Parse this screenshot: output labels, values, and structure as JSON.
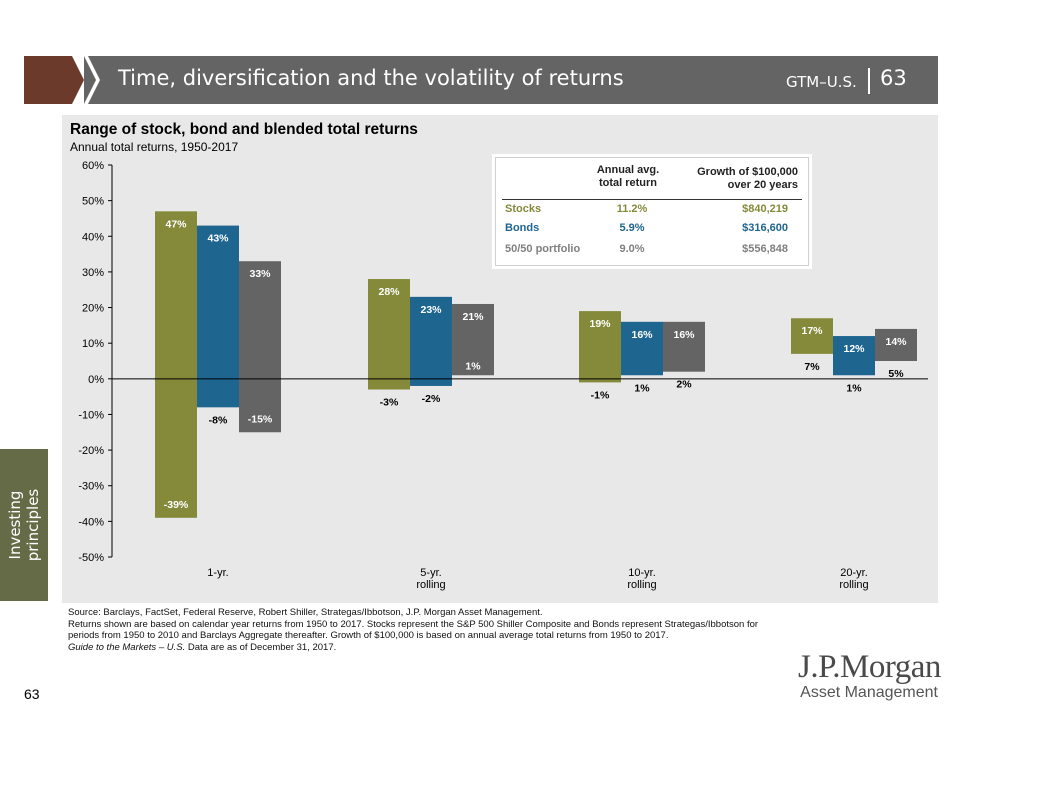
{
  "header": {
    "title": "Time, diversification and the volatility of returns",
    "code": "GTM–U.S.",
    "page": "63",
    "arrow_color": "#6b3a2a",
    "bar_color": "#646464"
  },
  "side_tab": {
    "line1": "Investing",
    "line2": "principles",
    "color": "#646b46"
  },
  "chart_data": {
    "type": "bar",
    "subtype": "floating-range",
    "title": "Range of stock, bond and blended total returns",
    "subtitle": "Annual total returns, 1950-2017",
    "ylim": [
      -50,
      60
    ],
    "yticks": [
      "60%",
      "50%",
      "40%",
      "30%",
      "20%",
      "10%",
      "0%",
      "-10%",
      "-20%",
      "-30%",
      "-40%",
      "-50%"
    ],
    "ytick_values": [
      60,
      50,
      40,
      30,
      20,
      10,
      0,
      -10,
      -20,
      -30,
      -40,
      -50
    ],
    "grid": false,
    "categories": [
      {
        "line1": "1-yr.",
        "line2": ""
      },
      {
        "line1": "5-yr.",
        "line2": "rolling"
      },
      {
        "line1": "10-yr.",
        "line2": "rolling"
      },
      {
        "line1": "20-yr.",
        "line2": "rolling"
      }
    ],
    "series": [
      {
        "name": "Stocks",
        "color": "#848a3a",
        "high": [
          47,
          28,
          19,
          17
        ],
        "low": [
          -39,
          -3,
          -1,
          7
        ],
        "high_labels": [
          "47%",
          "28%",
          "19%",
          "17%"
        ],
        "low_labels": [
          "-39%",
          "-3%",
          "-1%",
          "7%"
        ]
      },
      {
        "name": "Bonds",
        "color": "#1e6590",
        "high": [
          43,
          23,
          16,
          12
        ],
        "low": [
          -8,
          -2,
          1,
          1
        ],
        "high_labels": [
          "43%",
          "23%",
          "16%",
          "12%"
        ],
        "low_labels": [
          "-8%",
          "-2%",
          "1%",
          "1%"
        ]
      },
      {
        "name": "50/50 portfolio",
        "color": "#646464",
        "high": [
          33,
          21,
          16,
          14
        ],
        "low": [
          -15,
          1,
          2,
          5
        ],
        "high_labels": [
          "33%",
          "21%",
          "16%",
          "14%"
        ],
        "low_labels": [
          "-15%",
          "1%",
          "2%",
          "5%"
        ]
      }
    ]
  },
  "legend_table": {
    "col1_line1": "Annual avg.",
    "col1_line2": "total return",
    "col2_line1": "Growth of $100,000",
    "col2_line2": "over 20 years",
    "rows": [
      {
        "name": "Stocks",
        "ret": "11.2%",
        "growth": "$840,219"
      },
      {
        "name": "Bonds",
        "ret": "5.9%",
        "growth": "$316,600"
      },
      {
        "name": "50/50 portfolio",
        "ret": "9.0%",
        "growth": "$556,848"
      }
    ]
  },
  "footnotes": {
    "source": "Source: Barclays, FactSet, Federal Reserve, Robert Shiller, Strategas/Ibbotson, J.P. Morgan Asset Management.",
    "note": "Returns shown are based on calendar year returns from 1950 to 2017. Stocks represent the S&P 500 Shiller Composite and Bonds represent Strategas/Ibbotson for periods from 1950 to 2010 and Barclays Aggregate thereafter. Growth of $100,000 is based on annual average total returns from 1950 to 2017.",
    "guide_italic": "Guide to the Markets – U.S.",
    "guide_rest": " Data are as of December 31,  2017."
  },
  "page_number": "63",
  "logo": {
    "main": "J.P.Morgan",
    "sub": "Asset Management"
  }
}
